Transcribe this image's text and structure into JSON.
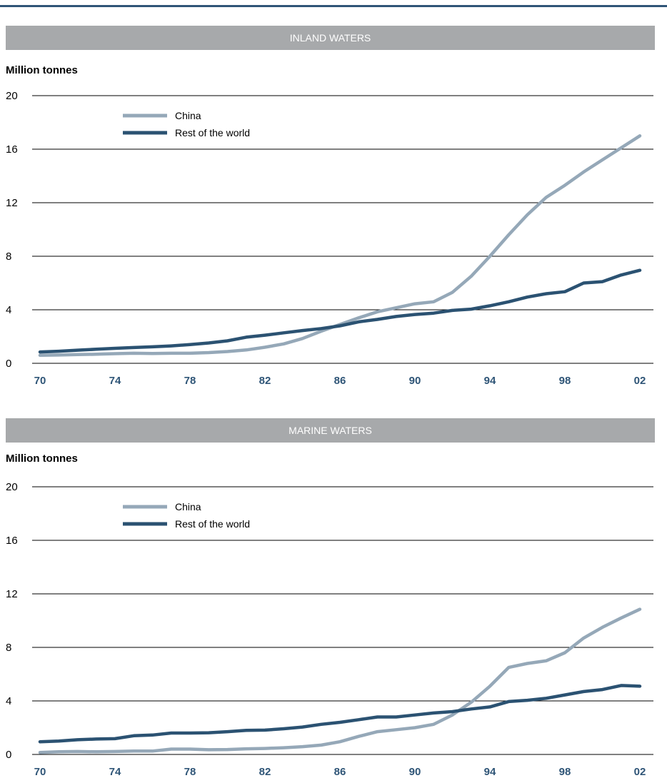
{
  "chart_data": [
    {
      "type": "line",
      "title": "INLAND WATERS",
      "ylabel": "Million tonnes",
      "xlabel": "",
      "ylim": [
        0,
        20
      ],
      "yticks": [
        "0",
        "4",
        "8",
        "12",
        "16",
        "20"
      ],
      "xticks": [
        "70",
        "74",
        "78",
        "82",
        "86",
        "90",
        "94",
        "98",
        "02"
      ],
      "x": [
        1970,
        1971,
        1972,
        1973,
        1974,
        1975,
        1976,
        1977,
        1978,
        1979,
        1980,
        1981,
        1982,
        1983,
        1984,
        1985,
        1986,
        1987,
        1988,
        1989,
        1990,
        1991,
        1992,
        1993,
        1994,
        1995,
        1996,
        1997,
        1998,
        1999,
        2000,
        2001,
        2002
      ],
      "series": [
        {
          "name": "China",
          "color": "#95a8b8",
          "values": [
            0.6,
            0.62,
            0.65,
            0.68,
            0.72,
            0.75,
            0.73,
            0.75,
            0.75,
            0.8,
            0.88,
            1.0,
            1.2,
            1.45,
            1.85,
            2.4,
            2.9,
            3.4,
            3.85,
            4.15,
            4.45,
            4.6,
            5.3,
            6.5,
            8.0,
            9.6,
            11.1,
            12.4,
            13.3,
            14.3,
            15.2,
            16.1,
            17.0
          ]
        },
        {
          "name": "Rest of the world",
          "color": "#2b5272",
          "values": [
            0.85,
            0.9,
            0.98,
            1.05,
            1.12,
            1.18,
            1.23,
            1.3,
            1.4,
            1.52,
            1.68,
            1.95,
            2.1,
            2.28,
            2.45,
            2.6,
            2.8,
            3.1,
            3.28,
            3.5,
            3.65,
            3.75,
            3.95,
            4.05,
            4.3,
            4.6,
            4.95,
            5.2,
            5.35,
            6.0,
            6.1,
            6.6,
            6.95
          ]
        }
      ]
    },
    {
      "type": "line",
      "title": "MARINE WATERS",
      "ylabel": "Million tonnes",
      "xlabel": "",
      "ylim": [
        0,
        20
      ],
      "yticks": [
        "0",
        "4",
        "8",
        "12",
        "16",
        "20"
      ],
      "xticks": [
        "70",
        "74",
        "78",
        "82",
        "86",
        "90",
        "94",
        "98",
        "02"
      ],
      "x": [
        1970,
        1971,
        1972,
        1973,
        1974,
        1975,
        1976,
        1977,
        1978,
        1979,
        1980,
        1981,
        1982,
        1983,
        1984,
        1985,
        1986,
        1987,
        1988,
        1989,
        1990,
        1991,
        1992,
        1993,
        1994,
        1995,
        1996,
        1997,
        1998,
        1999,
        2000,
        2001,
        2002
      ],
      "series": [
        {
          "name": "China",
          "color": "#95a8b8",
          "values": [
            0.15,
            0.2,
            0.22,
            0.2,
            0.22,
            0.25,
            0.25,
            0.4,
            0.4,
            0.35,
            0.37,
            0.42,
            0.45,
            0.5,
            0.58,
            0.7,
            0.95,
            1.35,
            1.7,
            1.85,
            2.0,
            2.25,
            2.95,
            3.9,
            5.1,
            6.5,
            6.8,
            7.0,
            7.6,
            8.7,
            9.5,
            10.2,
            10.85
          ]
        },
        {
          "name": "Rest of the world",
          "color": "#2b5272",
          "values": [
            0.95,
            1.0,
            1.1,
            1.15,
            1.18,
            1.4,
            1.45,
            1.6,
            1.6,
            1.62,
            1.7,
            1.8,
            1.82,
            1.92,
            2.05,
            2.25,
            2.4,
            2.6,
            2.8,
            2.8,
            2.95,
            3.1,
            3.2,
            3.4,
            3.55,
            3.95,
            4.05,
            4.2,
            4.45,
            4.7,
            4.85,
            5.15,
            5.1
          ]
        }
      ]
    }
  ]
}
